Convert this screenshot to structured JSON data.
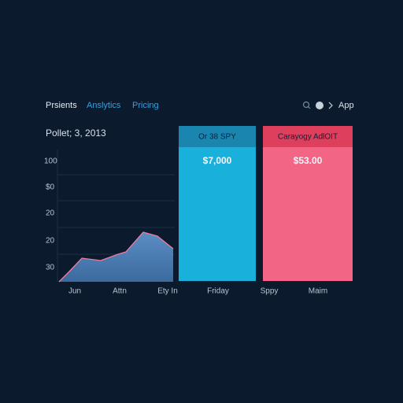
{
  "nav": {
    "items": [
      "Prsients",
      "Anslytics",
      "Pricing"
    ],
    "app": "App"
  },
  "header": {
    "title": "Pollet; 3, 2013"
  },
  "axis": {
    "labels": [
      "100",
      "$0",
      "20",
      "20",
      "30"
    ]
  },
  "cards": [
    {
      "label": "Or 38 SPY",
      "value": "$7,000"
    },
    {
      "label": "Carayogy AdlOIT",
      "value": "$53.00"
    }
  ],
  "x_labels": [
    "Jun",
    "Attn",
    "Ety In",
    "Friday",
    "Sppy",
    "Maim"
  ]
}
